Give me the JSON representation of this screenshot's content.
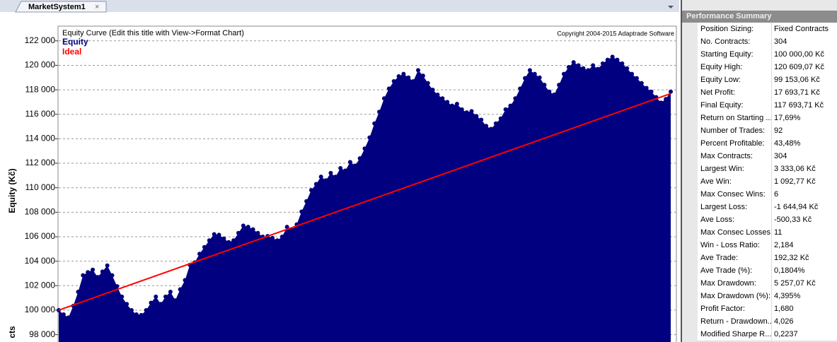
{
  "tab": {
    "label": "MarketSystem1"
  },
  "chart_data": {
    "type": "area",
    "title": "Equity Curve (Edit this title with View->Format Chart)",
    "copyright": "Copyright 2004-2015 Adaptrade Software",
    "ylabel": "Equity (Kč)",
    "y2label": "cts",
    "ylim": [
      97400,
      123200
    ],
    "yticks": [
      {
        "value": 98000,
        "label": "98 000"
      },
      {
        "value": 100000,
        "label": "100 000"
      },
      {
        "value": 102000,
        "label": "102 000"
      },
      {
        "value": 104000,
        "label": "104 000"
      },
      {
        "value": 106000,
        "label": "106 000"
      },
      {
        "value": 108000,
        "label": "108 000"
      },
      {
        "value": 110000,
        "label": "110 000"
      },
      {
        "value": 112000,
        "label": "112 000"
      },
      {
        "value": 114000,
        "label": "114 000"
      },
      {
        "value": 116000,
        "label": "116 000"
      },
      {
        "value": 118000,
        "label": "118 000"
      },
      {
        "value": 120000,
        "label": "120 000"
      },
      {
        "value": 122000,
        "label": "122 000"
      }
    ],
    "grid": true,
    "series": [
      {
        "name": "Equity",
        "color": "#000080",
        "values": [
          100000,
          99650,
          99400,
          100350,
          101500,
          102850,
          103100,
          103300,
          102700,
          103150,
          103650,
          102850,
          101950,
          101100,
          100500,
          100000,
          99650,
          99600,
          100000,
          100600,
          101100,
          100500,
          101100,
          101500,
          100800,
          101700,
          102450,
          103700,
          103900,
          104600,
          105150,
          105700,
          106200,
          106150,
          105850,
          105550,
          105700,
          106300,
          106900,
          106800,
          106600,
          106300,
          106000,
          106050,
          105900,
          105700,
          106000,
          106800,
          106550,
          107000,
          108050,
          108900,
          109800,
          110300,
          110900,
          110600,
          111200,
          110900,
          111600,
          111400,
          112100,
          111800,
          112400,
          113200,
          114100,
          115250,
          116200,
          117300,
          118100,
          118700,
          119100,
          119300,
          119000,
          118700,
          119600,
          119150,
          118550,
          118000,
          117600,
          117300,
          117000,
          116700,
          116850,
          116400,
          116150,
          116250,
          115850,
          115550,
          115050,
          114800,
          115250,
          115650,
          116400,
          116700,
          117300,
          118100,
          118950,
          119600,
          119300,
          119000,
          118400,
          117850,
          117600,
          118400,
          119300,
          119850,
          120250,
          120000,
          119750,
          119600,
          120000,
          119700,
          120150,
          120450,
          120700,
          120450,
          120150,
          119750,
          119300,
          118950,
          118550,
          118150,
          117850,
          117400,
          116950,
          117250,
          117850
        ]
      }
    ],
    "ideal": {
      "name": "Ideal",
      "color": "#ff0000",
      "values": [
        100000,
        117693.71
      ]
    }
  },
  "summary": {
    "title": "Performance Summary",
    "rows": [
      [
        "Position Sizing:",
        "Fixed Contracts"
      ],
      [
        "No. Contracts:",
        "304"
      ],
      [
        "Starting Equity:",
        "100 000,00 Kč"
      ],
      [
        "Equity High:",
        "120 609,07 Kč"
      ],
      [
        "Equity Low:",
        "99 153,06 Kč"
      ],
      [
        "Net Profit:",
        "17 693,71 Kč"
      ],
      [
        "Final Equity:",
        "117 693,71 Kč"
      ],
      [
        "Return on Starting ...",
        "17,69%"
      ],
      [
        "Number of Trades:",
        "92"
      ],
      [
        "Percent Profitable:",
        "43,48%"
      ],
      [
        "Max Contracts:",
        "304"
      ],
      [
        "Largest Win:",
        "3 333,06 Kč"
      ],
      [
        "Ave Win:",
        "1 092,77 Kč"
      ],
      [
        "Max Consec Wins:",
        "6"
      ],
      [
        "Largest Loss:",
        "-1 644,94 Kč"
      ],
      [
        "Ave Loss:",
        "-500,33 Kč"
      ],
      [
        "Max Consec Losses:",
        "11"
      ],
      [
        "Win - Loss Ratio:",
        "2,184"
      ],
      [
        "Ave Trade:",
        "192,32 Kč"
      ],
      [
        "Ave Trade (%):",
        "0,1804%"
      ],
      [
        "Max Drawdown:",
        "5 257,07 Kč"
      ],
      [
        "Max Drawdown (%):",
        "4,395%"
      ],
      [
        "Profit Factor:",
        "1,680"
      ],
      [
        "Return - Drawdown...",
        "4,026"
      ],
      [
        "Modified Sharpe R...",
        "0,2237"
      ]
    ]
  }
}
